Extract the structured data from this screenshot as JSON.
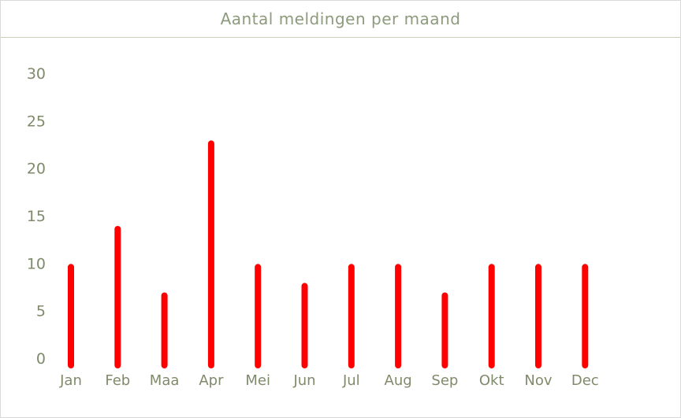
{
  "chart_data": {
    "type": "bar",
    "title": "Aantal meldingen per maand",
    "xlabel": "",
    "ylabel": "",
    "categories": [
      "Jan",
      "Feb",
      "Maa",
      "Apr",
      "Mei",
      "Jun",
      "Jul",
      "Aug",
      "Sep",
      "Okt",
      "Nov",
      "Dec"
    ],
    "values": [
      11,
      15,
      8,
      24,
      11,
      9,
      11,
      11,
      8,
      11,
      11,
      11
    ],
    "ylim": [
      0,
      30
    ],
    "yticks": [
      0,
      5,
      10,
      15,
      20,
      25,
      30
    ],
    "bar_color": "#ff0000",
    "text_color": "#7f8a6a",
    "grid": false,
    "legend": "none"
  }
}
